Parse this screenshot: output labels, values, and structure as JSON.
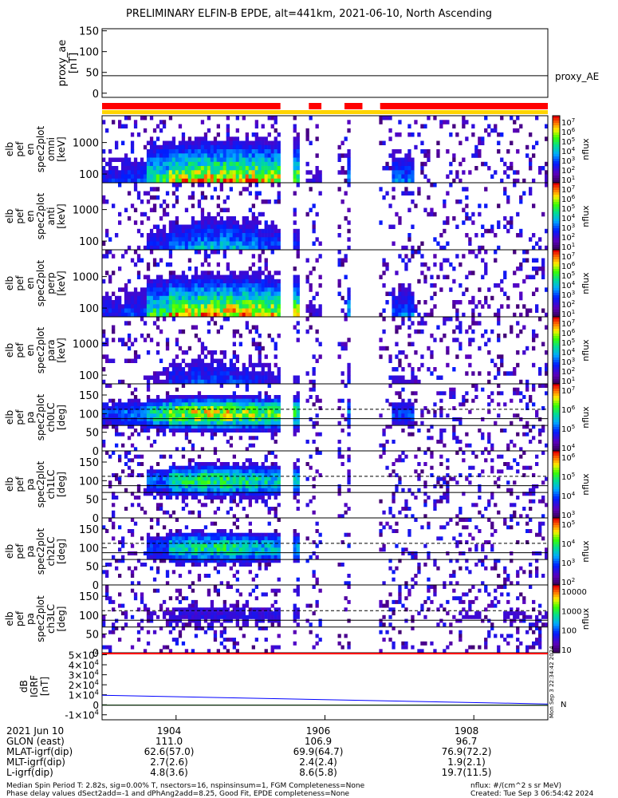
{
  "title": "PRELIMINARY ELFIN-B EPDE, alt=441km, 2021-06-10, North Ascending",
  "colors": {
    "quality_red": "#ff0000",
    "quality_yellow": "#ffd400",
    "ae_line": "#000000",
    "igrf_x": "#0000ff",
    "igrf_y": "#00aa00",
    "igrf_z": "#000000"
  },
  "chart_data": [
    {
      "type": "line",
      "panel": "proxy_ae",
      "ylabel": [
        "proxy_ae",
        "[nT]"
      ],
      "yticks": [
        "150",
        "100",
        "50",
        "0"
      ],
      "ylim": [
        -10,
        155
      ],
      "series": [
        {
          "name": "proxy_AE",
          "x": [
            "2021-06-10 19:03:00",
            "2021-06-10 19:09:00"
          ],
          "y": [
            42,
            42
          ]
        }
      ]
    },
    {
      "type": "bar",
      "panel": "data_quality",
      "segments": [
        {
          "state": "red",
          "t0": 0.0,
          "t1": 0.4
        },
        {
          "state": "yellow",
          "t0": 0.4,
          "t1": 0.464
        },
        {
          "state": "red",
          "t0": 0.464,
          "t1": 0.492
        },
        {
          "state": "yellow",
          "t0": 0.492,
          "t1": 0.544
        },
        {
          "state": "red",
          "t0": 0.544,
          "t1": 0.584
        },
        {
          "state": "yellow",
          "t0": 0.584,
          "t1": 0.624
        },
        {
          "state": "red",
          "t0": 0.624,
          "t1": 1.0
        }
      ]
    },
    {
      "type": "heatmap",
      "panel": "energy_omni",
      "ylabel": [
        "elb",
        "pef",
        "en",
        "spec2plot",
        "omni",
        "[keV]"
      ],
      "yticks": [
        "1000",
        "100"
      ],
      "yscale": "log",
      "colorbar": {
        "label": "nflux",
        "ticks": [
          "10^7",
          "10^6",
          "10^5",
          "10^4",
          "10^3",
          "10^2",
          "10^1"
        ]
      },
      "intensity": [
        0.3,
        0.35,
        0.7,
        0.9,
        0.95,
        0.95,
        0.95,
        0.9,
        0.85,
        0.2,
        0.1,
        0.5,
        0.1,
        0.4,
        0.05,
        0.1,
        0.1,
        0.1,
        0.1,
        0.15
      ],
      "active_time_intervals": [
        [
          0.0,
          0.4
        ],
        [
          0.43,
          0.44
        ],
        [
          0.46,
          0.49
        ],
        [
          0.53,
          0.56
        ],
        [
          0.62,
          1.0
        ]
      ]
    },
    {
      "type": "heatmap",
      "panel": "energy_anti",
      "ylabel": [
        "elb",
        "pef",
        "en",
        "spec2plot",
        "anti",
        "[keV]"
      ],
      "yticks": [
        "1000",
        "100"
      ],
      "yscale": "log",
      "colorbar": {
        "label": "nflux",
        "ticks": [
          "10^7",
          "10^6",
          "10^5",
          "10^4",
          "10^3",
          "10^2",
          "10^1"
        ]
      },
      "intensity": [
        0.1,
        0.15,
        0.3,
        0.4,
        0.5,
        0.5,
        0.45,
        0.35,
        0.3,
        0.1,
        0.05,
        0.2,
        0.05,
        0.15,
        0.05,
        0.08,
        0.08,
        0.08,
        0.08,
        0.1
      ],
      "active_time_intervals": [
        [
          0.0,
          0.4
        ],
        [
          0.43,
          0.44
        ],
        [
          0.46,
          0.49
        ],
        [
          0.53,
          0.56
        ],
        [
          0.62,
          1.0
        ]
      ]
    },
    {
      "type": "heatmap",
      "panel": "energy_perp",
      "ylabel": [
        "elb",
        "pef",
        "en",
        "spec2plot",
        "perp",
        "[keV]"
      ],
      "yticks": [
        "1000",
        "100"
      ],
      "yscale": "log",
      "colorbar": {
        "label": "nflux",
        "ticks": [
          "10^7",
          "10^6",
          "10^5",
          "10^4",
          "10^3",
          "10^2",
          "10^1"
        ]
      },
      "intensity": [
        0.3,
        0.35,
        0.7,
        0.9,
        0.95,
        0.95,
        0.95,
        0.9,
        0.85,
        0.2,
        0.1,
        0.5,
        0.1,
        0.4,
        0.05,
        0.1,
        0.1,
        0.1,
        0.1,
        0.15
      ],
      "active_time_intervals": [
        [
          0.0,
          0.4
        ],
        [
          0.43,
          0.44
        ],
        [
          0.46,
          0.49
        ],
        [
          0.53,
          0.56
        ],
        [
          0.62,
          1.0
        ]
      ]
    },
    {
      "type": "heatmap",
      "panel": "energy_para",
      "ylabel": [
        "elb",
        "pef",
        "en",
        "spec2plot",
        "para",
        "[keV]"
      ],
      "yticks": [
        "1000",
        "100"
      ],
      "yscale": "log",
      "colorbar": {
        "label": "nflux",
        "ticks": [
          "10^7",
          "10^6",
          "10^5",
          "10^4",
          "10^3",
          "10^2",
          "10^1"
        ]
      },
      "intensity": [
        0.1,
        0.1,
        0.2,
        0.3,
        0.35,
        0.35,
        0.3,
        0.25,
        0.2,
        0.05,
        0.05,
        0.3,
        0.05,
        0.2,
        0.05,
        0.05,
        0.05,
        0.05,
        0.05,
        0.08
      ],
      "active_time_intervals": [
        [
          0.0,
          0.4
        ],
        [
          0.43,
          0.44
        ],
        [
          0.46,
          0.49
        ],
        [
          0.53,
          0.56
        ],
        [
          0.62,
          1.0
        ]
      ]
    },
    {
      "type": "heatmap",
      "panel": "pitch_ch0LC",
      "ylabel": [
        "elb",
        "pef",
        "pa",
        "spec2plot",
        "ch0LC",
        "[deg]"
      ],
      "yticks": [
        "150",
        "100",
        "50",
        "0"
      ],
      "ylim": [
        0,
        180
      ],
      "colorbar": {
        "label": "nflux",
        "ticks": [
          "10^7",
          "10^6",
          "10^5",
          "10^4"
        ]
      },
      "intensity": [
        0.3,
        0.35,
        0.55,
        0.7,
        0.75,
        0.75,
        0.7,
        0.65,
        0.6,
        0.1,
        0.05,
        0.4,
        0.05,
        0.3,
        0.05,
        0.05,
        0.05,
        0.05,
        0.05,
        0.05
      ],
      "active_time_intervals": [
        [
          0.0,
          0.4
        ],
        [
          0.43,
          0.44
        ],
        [
          0.46,
          0.49
        ],
        [
          0.53,
          0.56
        ],
        [
          0.62,
          1.0
        ]
      ]
    },
    {
      "type": "heatmap",
      "panel": "pitch_ch1LC",
      "ylabel": [
        "elb",
        "pef",
        "pa",
        "spec2plot",
        "ch1LC",
        "[deg]"
      ],
      "yticks": [
        "150",
        "100",
        "50",
        "0"
      ],
      "ylim": [
        0,
        180
      ],
      "colorbar": {
        "label": "nflux",
        "ticks": [
          "10^6",
          "10^5",
          "10^4",
          "10^3"
        ]
      },
      "intensity": [
        0.05,
        0.1,
        0.35,
        0.55,
        0.6,
        0.6,
        0.55,
        0.5,
        0.45,
        0.05,
        0.02,
        0.2,
        0.02,
        0.1,
        0.02,
        0.02,
        0.02,
        0.02,
        0.02,
        0.05
      ],
      "active_time_intervals": [
        [
          0.0,
          0.4
        ],
        [
          0.43,
          0.44
        ],
        [
          0.46,
          0.49
        ],
        [
          0.53,
          0.56
        ],
        [
          0.62,
          1.0
        ]
      ]
    },
    {
      "type": "heatmap",
      "panel": "pitch_ch2LC",
      "ylabel": [
        "elb",
        "pef",
        "pa",
        "spec2plot",
        "ch2LC",
        "[deg]"
      ],
      "yticks": [
        "150",
        "100",
        "50",
        "0"
      ],
      "ylim": [
        0,
        180
      ],
      "colorbar": {
        "label": "nflux",
        "ticks": [
          "10^5",
          "10^4",
          "10^3",
          "10^2"
        ]
      },
      "intensity": [
        0.02,
        0.05,
        0.3,
        0.5,
        0.55,
        0.55,
        0.5,
        0.45,
        0.4,
        0.02,
        0.02,
        0.02,
        0.02,
        0.02,
        0.02,
        0.02,
        0.02,
        0.02,
        0.02,
        0.02
      ],
      "active_time_intervals": [
        [
          0.0,
          0.4
        ],
        [
          0.43,
          0.44
        ],
        [
          0.46,
          0.49
        ],
        [
          0.53,
          0.56
        ],
        [
          0.62,
          1.0
        ]
      ]
    },
    {
      "type": "heatmap",
      "panel": "pitch_ch3LC",
      "ylabel": [
        "elb",
        "pef",
        "pa",
        "spec2plot",
        "ch3LC",
        "[deg]"
      ],
      "yticks": [
        "150",
        "100",
        "50",
        "0"
      ],
      "ylim": [
        0,
        180
      ],
      "colorbar": {
        "label": "nflux",
        "ticks": [
          "10000",
          "1000",
          "100",
          "10"
        ]
      },
      "intensity": [
        0.1,
        0.1,
        0.15,
        0.2,
        0.2,
        0.2,
        0.2,
        0.2,
        0.2,
        0.05,
        0.05,
        0.1,
        0.05,
        0.1,
        0.1,
        0.1,
        0.15,
        0.1,
        0.15,
        0.15
      ],
      "active_time_intervals": [
        [
          0.0,
          0.4
        ],
        [
          0.43,
          0.44
        ],
        [
          0.46,
          0.49
        ],
        [
          0.53,
          0.56
        ],
        [
          0.62,
          1.0
        ]
      ]
    },
    {
      "type": "line",
      "panel": "dB_igrf",
      "ylabel": [
        "dB",
        "IGRF",
        "[nT]"
      ],
      "yticks": [
        "5×10^4",
        "4×10^4",
        "3×10^4",
        "2×10^4",
        "1×10^4",
        "0",
        "-1×10^4"
      ],
      "ylim": [
        -15000,
        52000
      ],
      "x": [
        "19:03",
        "19:09"
      ],
      "series": [
        {
          "x": [
            0,
            1
          ],
          "y": [
            9500,
            800
          ]
        },
        {
          "x": [
            0,
            1
          ],
          "y": [
            -200,
            -300
          ]
        },
        {
          "x": [
            0,
            1
          ],
          "y": [
            -400,
            -500
          ]
        }
      ]
    }
  ],
  "side_text": {
    "proxy_ae_label": "proxy_AE",
    "colorbar_unit": "nflux",
    "dB_legend": "N",
    "vertical_stamp": "Mon Sep  3 22:34:42 2024"
  },
  "time_axis": {
    "rows": [
      {
        "label": "2021 Jun 10",
        "values": [
          "1904",
          "1906",
          "1908"
        ]
      },
      {
        "label": "GLON (east)",
        "values": [
          "111.0",
          "106.9",
          "96.7"
        ]
      },
      {
        "label": "MLAT-igrf(dip)",
        "values": [
          "62.6(57.0)",
          "69.9(64.7)",
          "76.9(72.2)"
        ]
      },
      {
        "label": "MLT-igrf(dip)",
        "values": [
          "2.7(2.6)",
          "2.4(2.4)",
          "1.9(2.1)"
        ]
      },
      {
        "label": "L-igrf(dip)",
        "values": [
          "4.8(3.6)",
          "8.6(5.8)",
          "19.7(11.5)"
        ]
      }
    ]
  },
  "footer": {
    "line1": "Median Spin Period T: 2.82s, sig=0.00% T, nsectors=16, nspinsinsum=1, FGM Completeness=None",
    "line2": "Phase delay values dSect2add=-1 and dPhAng2add=8.25, Good Fit, EPDE completeness=None",
    "units": "nflux: #/(cm^2 s sr MeV)",
    "created": "Created: Tue Sep  3 06:54:42 2024"
  }
}
